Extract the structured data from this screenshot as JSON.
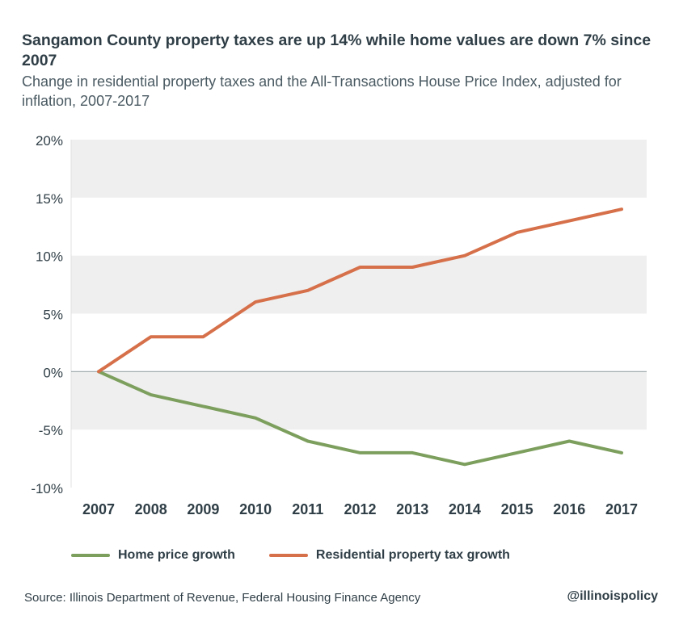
{
  "chart_data": {
    "type": "line",
    "title": "Sangamon County property taxes are up 14% while home values are down 7% since 2007",
    "subtitle": "Change in residential property taxes and the All-Transactions House Price Index, adjusted for inflation, 2007-2017",
    "x": [
      "2007",
      "2008",
      "2009",
      "2010",
      "2011",
      "2012",
      "2013",
      "2014",
      "2015",
      "2016",
      "2017"
    ],
    "ylim": [
      -10,
      20
    ],
    "yticks": [
      20,
      15,
      10,
      5,
      0,
      -5,
      -10
    ],
    "ytick_labels": [
      "20%",
      "15%",
      "10%",
      "5%",
      "0%",
      "-5%",
      "-10%"
    ],
    "grid": "alternating horizontal bands",
    "legend_position": "bottom",
    "series": [
      {
        "name": "Home price growth",
        "color": "#7d9f5e",
        "values": [
          0,
          -2,
          -3,
          -4,
          -6,
          -7,
          -7,
          -8,
          -7,
          -6,
          -7
        ]
      },
      {
        "name": "Residential property tax growth",
        "color": "#d6704a",
        "values": [
          0,
          3,
          3,
          6,
          7,
          9,
          9,
          10,
          12,
          13,
          14
        ]
      }
    ]
  },
  "source": "Source:  Illinois Department of Revenue, Federal Housing Finance Agency",
  "handle": "@illinoispolicy",
  "colors": {
    "band": "#efefef",
    "zero_line": "#9aa4a8",
    "text": "#2f3e46"
  }
}
